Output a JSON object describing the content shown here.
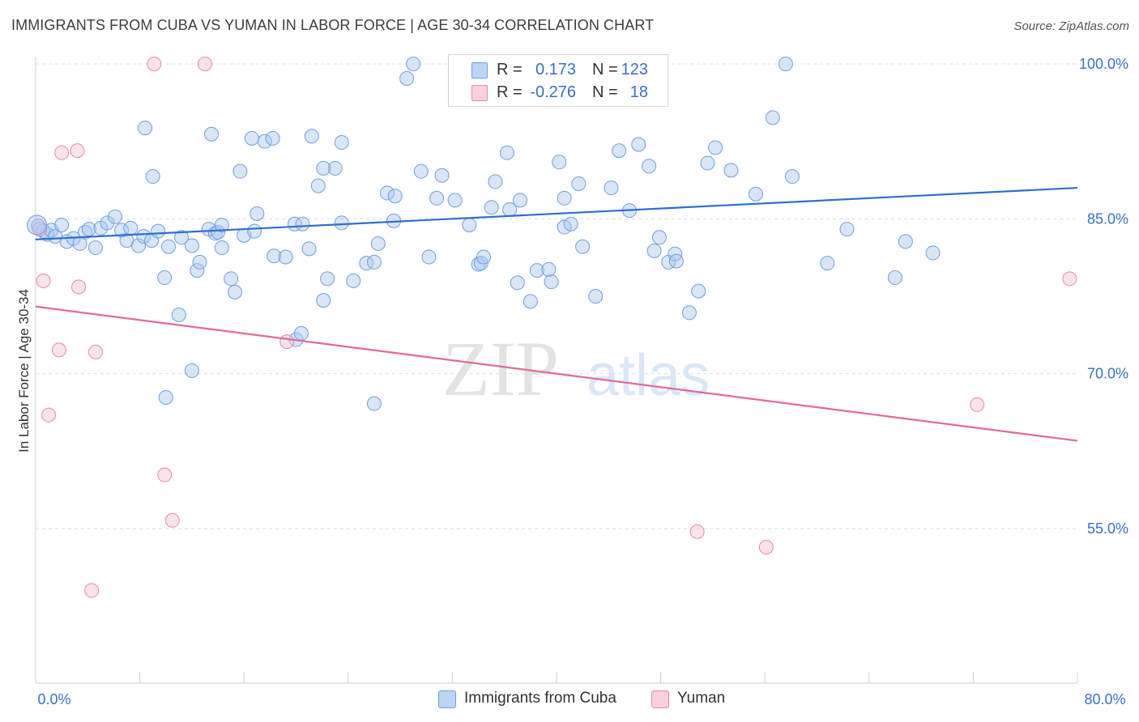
{
  "title": "IMMIGRANTS FROM CUBA VS YUMAN IN LABOR FORCE | AGE 30-34 CORRELATION CHART",
  "source": "Source: ZipAtlas.com",
  "watermark": {
    "zip": "ZIP",
    "atlas": "atlas"
  },
  "legend_top": {
    "rows": [
      {
        "r_label": "R =",
        "r_value": "0.173",
        "n_label": "N =",
        "n_value": "123",
        "color": "#a9c8f0",
        "border": "#6f9fdc"
      },
      {
        "r_label": "R =",
        "r_value": "-0.276",
        "n_label": "N =",
        "n_value": "18",
        "color": "#f7c2d2",
        "border": "#e58aa6"
      }
    ]
  },
  "legend_bottom": {
    "items": [
      {
        "label": "Immigrants from Cuba",
        "color": "#a9c8f0",
        "border": "#6f9fdc"
      },
      {
        "label": "Yuman",
        "color": "#f7c2d2",
        "border": "#e58aa6"
      }
    ]
  },
  "chart_data": {
    "type": "scatter",
    "title": "IMMIGRANTS FROM CUBA VS YUMAN IN LABOR FORCE | AGE 30-34 CORRELATION CHART",
    "xlabel": "",
    "ylabel": "In Labor Force | Age 30-34",
    "xlim": [
      0,
      80
    ],
    "ylim": [
      39,
      105
    ],
    "x_tick_labels": [
      "0.0%",
      "80.0%"
    ],
    "y_ticks": [
      55,
      70,
      85,
      100
    ],
    "y_tick_labels": [
      "55.0%",
      "70.0%",
      "85.0%",
      "100.0%"
    ],
    "grid": "horizontal dashed",
    "legend_position": "top-center",
    "series": [
      {
        "name": "Immigrants from Cuba",
        "color": "#6f9fdc",
        "fill": "rgba(169,200,240,0.45)",
        "trend": {
          "x": [
            0,
            80
          ],
          "y": [
            83.0,
            88.0
          ]
        },
        "points": [
          [
            0.2,
            84.3
          ],
          [
            0.6,
            83.8
          ],
          [
            0.9,
            83.5
          ],
          [
            1.2,
            83.9
          ],
          [
            1.5,
            83.3
          ],
          [
            2.0,
            84.4
          ],
          [
            2.4,
            82.8
          ],
          [
            2.9,
            83.1
          ],
          [
            3.4,
            82.6
          ],
          [
            3.8,
            83.7
          ],
          [
            4.1,
            84.0
          ],
          [
            4.6,
            82.2
          ],
          [
            5.0,
            84.1
          ],
          [
            5.5,
            84.6
          ],
          [
            6.1,
            85.2
          ],
          [
            6.6,
            83.9
          ],
          [
            7.0,
            82.9
          ],
          [
            7.3,
            84.1
          ],
          [
            7.9,
            82.4
          ],
          [
            8.3,
            83.3
          ],
          [
            8.9,
            82.9
          ],
          [
            9.4,
            83.8
          ],
          [
            9.9,
            79.3
          ],
          [
            10.2,
            82.3
          ],
          [
            11.2,
            83.2
          ],
          [
            12.0,
            82.4
          ],
          [
            12.4,
            80.0
          ],
          [
            12.6,
            80.8
          ],
          [
            13.3,
            84.0
          ],
          [
            13.8,
            83.6
          ],
          [
            14.0,
            83.7
          ],
          [
            14.3,
            82.2
          ],
          [
            15.0,
            79.2
          ],
          [
            15.3,
            77.9
          ],
          [
            16.0,
            83.4
          ],
          [
            16.8,
            83.8
          ],
          [
            17.0,
            85.5
          ],
          [
            18.3,
            81.4
          ],
          [
            19.2,
            81.3
          ],
          [
            19.9,
            84.5
          ],
          [
            20.5,
            84.5
          ],
          [
            20.0,
            73.3
          ],
          [
            20.4,
            73.9
          ],
          [
            21.0,
            82.1
          ],
          [
            22.1,
            77.1
          ],
          [
            22.4,
            79.2
          ],
          [
            23.5,
            84.6
          ],
          [
            23.0,
            89.9
          ],
          [
            24.4,
            79.0
          ],
          [
            25.4,
            80.7
          ],
          [
            26.0,
            80.8
          ],
          [
            26.3,
            82.6
          ],
          [
            27.0,
            87.5
          ],
          [
            27.6,
            87.2
          ],
          [
            28.5,
            98.6
          ],
          [
            29.0,
            100.0
          ],
          [
            29.6,
            89.6
          ],
          [
            30.2,
            81.3
          ],
          [
            30.8,
            87.0
          ],
          [
            31.2,
            89.2
          ],
          [
            32.2,
            86.8
          ],
          [
            33.3,
            84.4
          ],
          [
            34.0,
            80.6
          ],
          [
            34.2,
            80.7
          ],
          [
            34.4,
            81.3
          ],
          [
            35.0,
            86.1
          ],
          [
            35.3,
            88.6
          ],
          [
            36.2,
            91.4
          ],
          [
            37.2,
            86.8
          ],
          [
            36.4,
            85.9
          ],
          [
            37.0,
            78.8
          ],
          [
            38.0,
            77.0
          ],
          [
            38.5,
            80.0
          ],
          [
            39.4,
            80.1
          ],
          [
            39.6,
            78.9
          ],
          [
            40.2,
            90.5
          ],
          [
            40.6,
            84.2
          ],
          [
            41.1,
            84.5
          ],
          [
            40.6,
            87.0
          ],
          [
            41.7,
            88.4
          ],
          [
            42.0,
            82.3
          ],
          [
            43.0,
            77.5
          ],
          [
            44.2,
            88.0
          ],
          [
            44.8,
            91.6
          ],
          [
            45.6,
            85.8
          ],
          [
            46.3,
            92.2
          ],
          [
            47.1,
            90.1
          ],
          [
            47.5,
            81.9
          ],
          [
            47.9,
            83.2
          ],
          [
            48.6,
            80.8
          ],
          [
            49.1,
            81.6
          ],
          [
            49.2,
            80.9
          ],
          [
            50.2,
            75.9
          ],
          [
            50.9,
            78.0
          ],
          [
            51.6,
            90.4
          ],
          [
            52.2,
            91.9
          ],
          [
            53.4,
            89.7
          ],
          [
            55.3,
            87.4
          ],
          [
            56.6,
            94.8
          ],
          [
            57.6,
            100.0
          ],
          [
            58.1,
            89.1
          ],
          [
            60.8,
            80.7
          ],
          [
            62.3,
            84.0
          ],
          [
            66.0,
            79.3
          ],
          [
            66.8,
            82.8
          ],
          [
            68.9,
            81.7
          ],
          [
            8.4,
            93.8
          ],
          [
            9.0,
            89.1
          ],
          [
            13.5,
            93.2
          ],
          [
            14.3,
            84.4
          ],
          [
            15.7,
            89.6
          ],
          [
            16.6,
            92.8
          ],
          [
            17.6,
            92.5
          ],
          [
            18.2,
            92.8
          ],
          [
            10.0,
            67.7
          ],
          [
            11.0,
            75.7
          ],
          [
            12.0,
            70.3
          ],
          [
            21.2,
            93.0
          ],
          [
            21.7,
            88.2
          ],
          [
            22.1,
            89.9
          ],
          [
            23.5,
            92.4
          ],
          [
            26.0,
            67.1
          ],
          [
            27.5,
            84.8
          ]
        ]
      },
      {
        "name": "Yuman",
        "color": "#e58aa6",
        "fill": "rgba(247,194,210,0.45)",
        "trend": {
          "x": [
            0,
            80
          ],
          "y": [
            76.5,
            63.5
          ]
        },
        "points": [
          [
            0.3,
            84.0
          ],
          [
            0.6,
            79.0
          ],
          [
            1.0,
            66.0
          ],
          [
            1.8,
            72.3
          ],
          [
            2.0,
            91.4
          ],
          [
            3.2,
            91.6
          ],
          [
            3.3,
            78.4
          ],
          [
            4.6,
            72.1
          ],
          [
            4.3,
            49.0
          ],
          [
            9.1,
            100.0
          ],
          [
            9.9,
            60.2
          ],
          [
            10.5,
            55.8
          ],
          [
            13.0,
            100.0
          ],
          [
            19.3,
            73.1
          ],
          [
            50.8,
            54.7
          ],
          [
            56.1,
            53.2
          ],
          [
            72.3,
            67.0
          ],
          [
            79.4,
            79.2
          ]
        ]
      }
    ]
  }
}
